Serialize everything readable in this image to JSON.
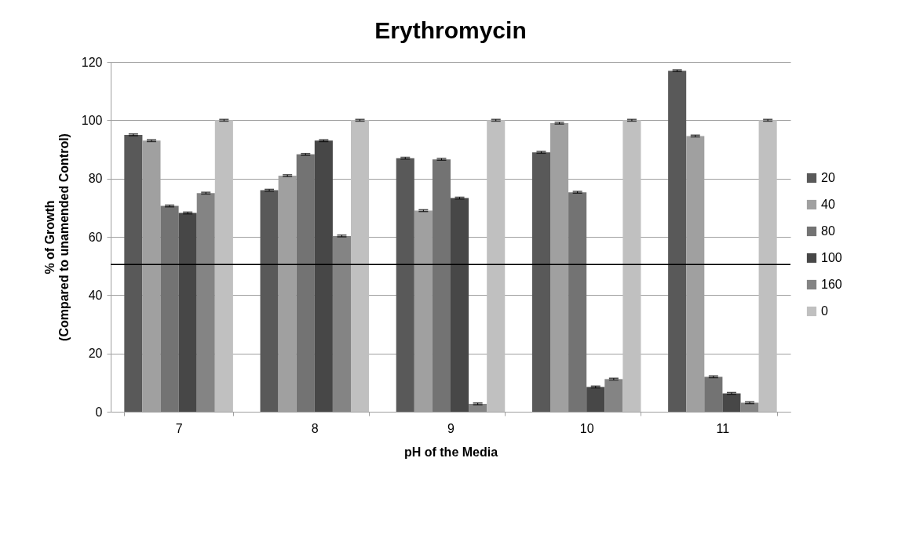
{
  "chart_data": {
    "type": "bar",
    "title": "Erythromycin",
    "xlabel": "pH of the Media",
    "ylabel": "% of Growth\n(Compared to unamended Control)",
    "categories": [
      "7",
      "8",
      "9",
      "10",
      "11"
    ],
    "series": [
      {
        "name": "20",
        "color": "#595959",
        "values": [
          95,
          76,
          87,
          89,
          117
        ],
        "errors": [
          0.3,
          0.3,
          0.3,
          0.3,
          0.3
        ]
      },
      {
        "name": "40",
        "color": "#a0a0a0",
        "values": [
          93,
          81,
          69,
          99,
          94.6
        ],
        "errors": [
          0.3,
          0.3,
          0.3,
          0.3,
          0.3
        ]
      },
      {
        "name": "80",
        "color": "#737373",
        "values": [
          70.6,
          88.3,
          86.6,
          75.3,
          12
        ],
        "errors": [
          0.3,
          0.3,
          0.3,
          0.3,
          0.3
        ]
      },
      {
        "name": "100",
        "color": "#474747",
        "values": [
          68.2,
          93,
          73.3,
          8.5,
          6.3
        ],
        "errors": [
          0.3,
          0.3,
          0.3,
          0.3,
          0.3
        ]
      },
      {
        "name": "160",
        "color": "#848484",
        "values": [
          75,
          60.3,
          2.7,
          11.2,
          3.1
        ],
        "errors": [
          0.3,
          0.3,
          0.3,
          0.3,
          0.3
        ]
      },
      {
        "name": "0",
        "color": "#c0c0c0",
        "values": [
          100,
          100,
          100,
          100,
          100
        ],
        "errors": [
          0.3,
          0.3,
          0.3,
          0.3,
          0.3
        ]
      }
    ],
    "ylim": [
      0,
      120
    ],
    "yticks": [
      0,
      20,
      40,
      60,
      80,
      100,
      120
    ],
    "grid": "y",
    "legend": "right",
    "ref_lines": [
      {
        "axis": "y",
        "value": 50.5,
        "color": "#000000"
      }
    ]
  }
}
